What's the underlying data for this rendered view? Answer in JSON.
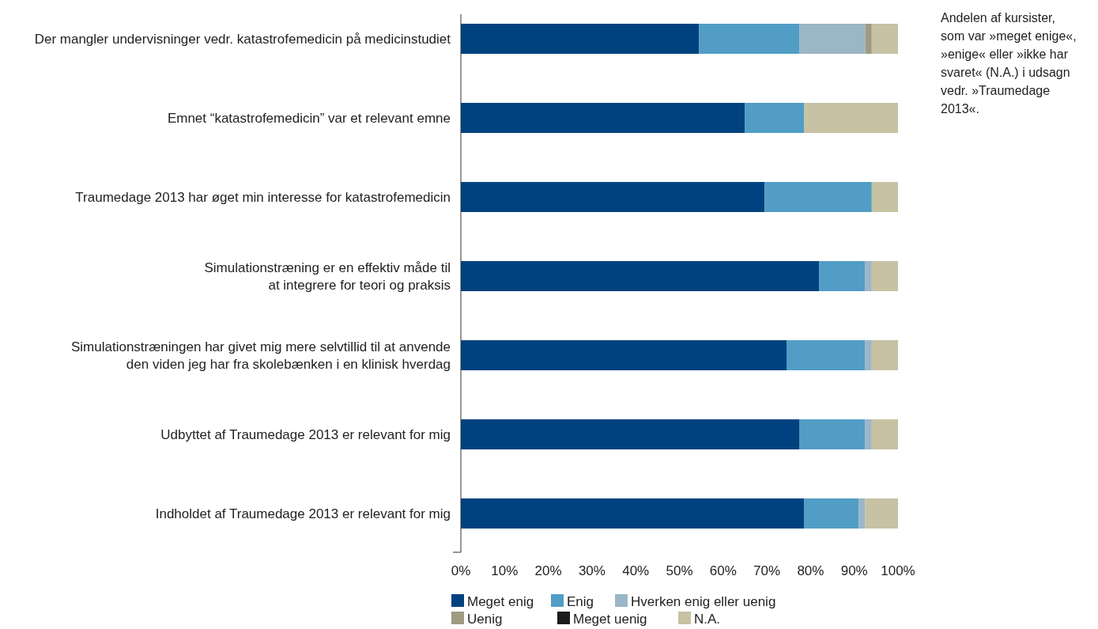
{
  "chart_data": {
    "type": "bar",
    "orientation": "horizontal",
    "stacked": true,
    "categories": [
      "Der mangler undervisninger vedr. katastrofemedicin på medicinstudiet",
      "Emnet “katastrofemedicin” var et relevant emne",
      "Traumedage 2013 har øget min interesse for katastrofemedicin",
      "Simulationstræning er en effektiv måde til\nat integrere for teori og praksis",
      "Simulationstræningen har givet mig mere selvtillid til at anvende\nden viden jeg har fra skolebænken i en klinisk hverdag",
      "Udbyttet af Traumedage 2013 er relevant for mig",
      "Indholdet af Traumedage 2013 er relevant for mig"
    ],
    "series": [
      {
        "name": "Meget enig",
        "color": "#00427f",
        "values": [
          54.5,
          65,
          69.5,
          82,
          74.5,
          77.5,
          78.5
        ]
      },
      {
        "name": "Enig",
        "color": "#519dc5",
        "values": [
          23,
          13.5,
          24.5,
          10.5,
          18,
          15,
          12.5
        ]
      },
      {
        "name": "Hverken enig eller uenig",
        "color": "#9bb6c6",
        "values": [
          15,
          0,
          0,
          1.5,
          1.5,
          1.5,
          1.5
        ]
      },
      {
        "name": "Uenig",
        "color": "#9e9b82",
        "values": [
          1.5,
          0,
          0,
          0,
          0,
          0,
          0
        ]
      },
      {
        "name": "Meget uenig",
        "color": "#1c1c1c",
        "values": [
          0,
          0,
          0,
          0,
          0,
          0,
          0
        ]
      },
      {
        "name": "N.A.",
        "color": "#c7c2a4",
        "values": [
          6,
          21.5,
          6,
          6,
          6,
          6,
          7.5
        ]
      }
    ],
    "xlim": [
      0,
      100
    ],
    "xticks": [
      {
        "value": 0,
        "label": "0%"
      },
      {
        "value": 10,
        "label": "10%"
      },
      {
        "value": 20,
        "label": "20%"
      },
      {
        "value": 30,
        "label": "30%"
      },
      {
        "value": 40,
        "label": "40%"
      },
      {
        "value": 50,
        "label": "50%"
      },
      {
        "value": 60,
        "label": "60%"
      },
      {
        "value": 70,
        "label": "70%"
      },
      {
        "value": 80,
        "label": "80%"
      },
      {
        "value": 90,
        "label": "90%"
      },
      {
        "value": 100,
        "label": "100%"
      }
    ],
    "grid": false,
    "legend": "bottom",
    "annotations": [
      "Andelen af kursister,\nsom var »meget enige«,\n»enige« eller »ikke har\nsvaret« (N.A.) i udsagn\nvedr. »Traumedage\n2013«."
    ]
  }
}
